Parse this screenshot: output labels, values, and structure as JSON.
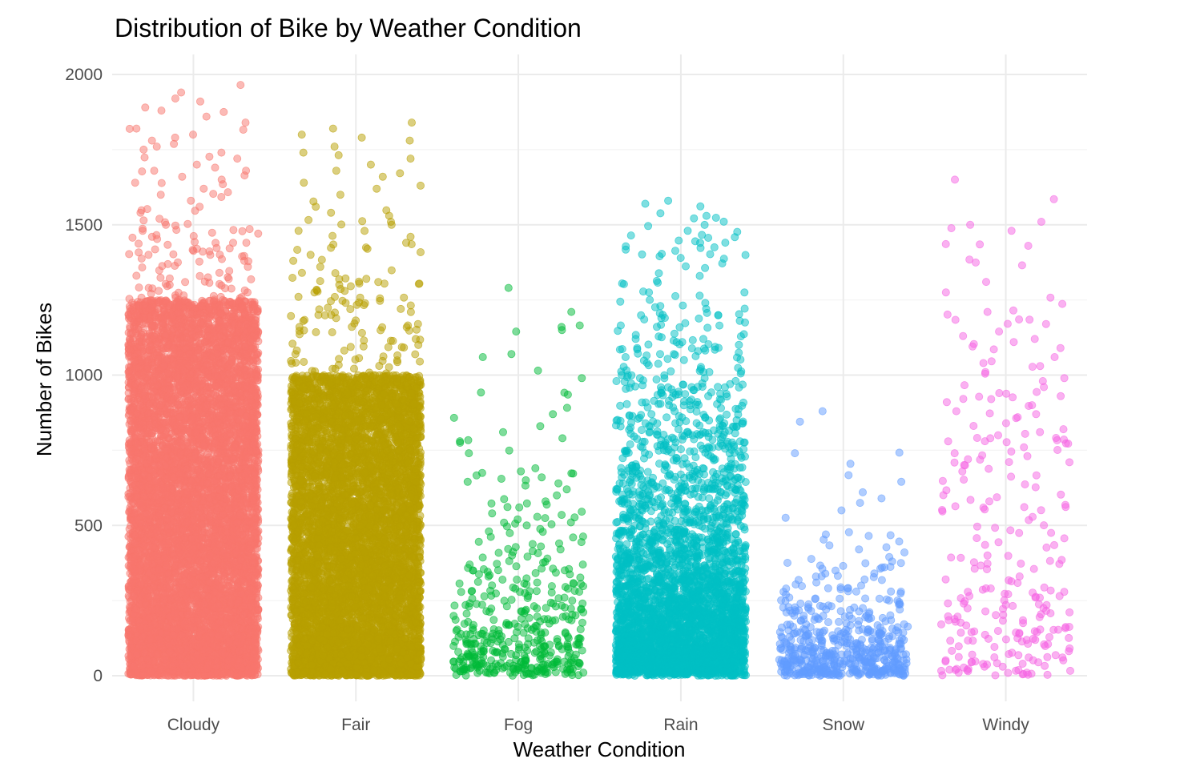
{
  "chart_data": {
    "type": "scatter",
    "title": "Distribution of Bike by Weather Condition",
    "xlabel": "Weather Condition",
    "ylabel": "Number of Bikes",
    "categories": [
      "Cloudy",
      "Fair",
      "Fog",
      "Rain",
      "Snow",
      "Windy"
    ],
    "ylim": [
      -70,
      2070
    ],
    "y_ticks": [
      0,
      500,
      1000,
      1500,
      2000
    ],
    "grid": true,
    "legend": "none",
    "jitter_width": 0.4,
    "point_opacity": 0.5,
    "series": [
      {
        "category": "Cloudy",
        "color": "#F8766D",
        "n_points": 9000,
        "distribution": {
          "max": 1970,
          "dense_below": 1250,
          "median_approx": 640
        },
        "sample_values": [
          1965,
          1940,
          1920,
          1910,
          1890,
          1880,
          1875,
          1860,
          1840,
          1820,
          1800,
          1790,
          1780,
          1760,
          1750,
          1740,
          1720,
          1700,
          1690,
          1680,
          1660,
          1650,
          1640,
          1620,
          1600,
          1580,
          1560,
          1540,
          1520,
          1500,
          1480,
          1460,
          1440,
          1420,
          1400,
          1380,
          1360,
          1340,
          1320,
          1300,
          1280,
          1260
        ]
      },
      {
        "category": "Fair",
        "color": "#B79F00",
        "n_points": 7000,
        "distribution": {
          "max": 1840,
          "dense_below": 1000,
          "median_approx": 420
        },
        "sample_values": [
          1840,
          1820,
          1800,
          1790,
          1780,
          1760,
          1740,
          1720,
          1700,
          1680,
          1660,
          1640,
          1630,
          1620,
          1600,
          1560,
          1540,
          1530,
          1510,
          1500,
          1480,
          1460,
          1440,
          1420,
          1400,
          1380,
          1360,
          1340,
          1320,
          1300,
          1280,
          1260,
          1240,
          1220,
          1200,
          1180,
          1160,
          1140,
          1120,
          1100
        ]
      },
      {
        "category": "Fog",
        "color": "#00BA38",
        "n_points": 420,
        "distribution": {
          "max": 1290,
          "dense_below": 120,
          "median_approx": 110
        },
        "sample_values": [
          1290,
          1210,
          1165,
          1160,
          1150,
          1145,
          1070,
          1060,
          1015,
          990,
          935,
          870,
          830,
          810,
          790,
          780,
          775,
          740,
          690,
          680,
          660,
          655,
          650,
          645,
          640,
          620,
          600,
          580,
          560,
          540,
          520,
          510,
          500,
          480,
          460,
          440,
          420,
          400,
          390,
          370,
          350,
          330,
          310
        ]
      },
      {
        "category": "Rain",
        "color": "#00BFC4",
        "n_points": 3500,
        "distribution": {
          "max": 1580,
          "dense_below": 500,
          "median_approx": 210
        },
        "sample_values": [
          1580,
          1480,
          1440,
          1425,
          1390,
          1330,
          1305,
          1275,
          1250,
          1240,
          1185,
          1175,
          1165,
          1120,
          1110,
          1090,
          1085,
          1080,
          1070,
          1060,
          1050,
          1020,
          1010,
          1000,
          990,
          980,
          970,
          960,
          950,
          940,
          930,
          920,
          900,
          890,
          880,
          870,
          860,
          850,
          840,
          830,
          820,
          810,
          800
        ]
      },
      {
        "category": "Snow",
        "color": "#619CFF",
        "n_points": 550,
        "distribution": {
          "max": 880,
          "dense_below": 220,
          "median_approx": 70
        },
        "sample_values": [
          880,
          845,
          740,
          705,
          645,
          610,
          590,
          575,
          550,
          470,
          465,
          380,
          375,
          365,
          360,
          350,
          340,
          330,
          320,
          310,
          300,
          290,
          280,
          270,
          260,
          255,
          250,
          245,
          240,
          230,
          225,
          220
        ]
      },
      {
        "category": "Windy",
        "color": "#F564E3",
        "n_points": 230,
        "distribution": {
          "max": 1650,
          "dense_below": 400,
          "median_approx": 300
        },
        "sample_values": [
          1650,
          1585,
          1510,
          1500,
          1480,
          1430,
          1365,
          1310,
          1275,
          1215,
          1210,
          1185,
          1170,
          1130,
          1120,
          1110,
          1095,
          1090,
          1060,
          1040,
          1030,
          1010,
          990,
          980,
          960,
          940,
          930,
          920,
          910,
          900,
          880,
          870,
          860,
          840,
          820,
          800,
          790,
          780,
          760,
          740,
          720,
          710,
          700
        ]
      }
    ]
  }
}
